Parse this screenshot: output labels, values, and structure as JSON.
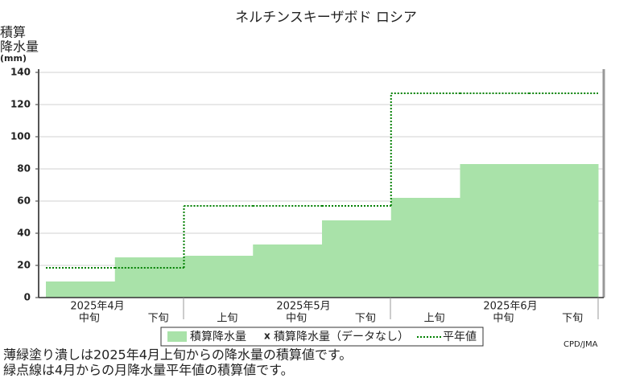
{
  "chart_data": {
    "type": "step-area",
    "title": "ネルチンスキーザボド ロシア",
    "y_label": [
      "積算",
      "降水量",
      "(mm)"
    ],
    "months": [
      "2025年4月",
      "2025年5月",
      "2025年6月"
    ],
    "categories": [
      "中旬",
      "下旬",
      "上旬",
      "中旬",
      "下旬",
      "上旬",
      "中旬",
      "下旬"
    ],
    "series": [
      {
        "name": "積算降水量",
        "color": "#a9e2a9",
        "values": [
          10,
          25,
          26,
          33,
          48,
          62,
          83,
          83
        ]
      },
      {
        "name": "平年値",
        "color": "#008000",
        "values": [
          18.5,
          18.5,
          57,
          57,
          57,
          127,
          127,
          127
        ]
      }
    ],
    "no_data_marker": "x",
    "no_data_label": "積算降水量（データなし）",
    "ylim": [
      0,
      140
    ],
    "yticks": [
      0,
      20,
      40,
      60,
      80,
      100,
      120,
      140
    ],
    "grid": true,
    "credit": "CPD/JMA",
    "notes": [
      "薄緑塗り潰しは2025年4月上旬からの降水量の積算値です。",
      "緑点線は4月からの月降水量平年値の積算値です。"
    ]
  }
}
